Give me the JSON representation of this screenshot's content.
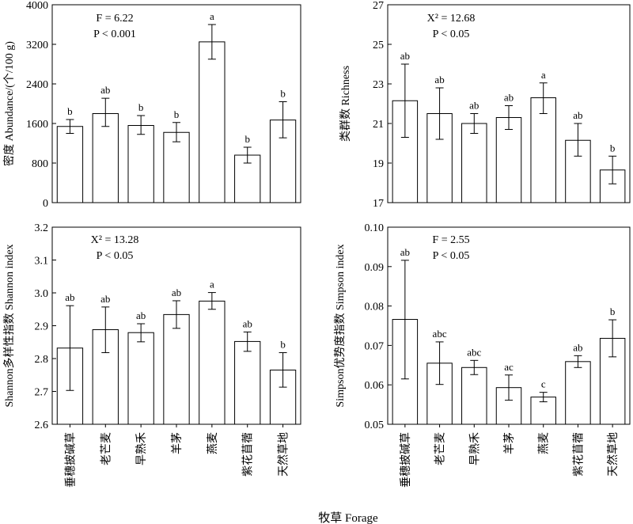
{
  "x_axis_title": "牧草  Forage",
  "chart_data": [
    {
      "type": "bar",
      "ylabel": "密度 Abundance/(个/100 g)",
      "ylim": [
        0,
        4000
      ],
      "yticks": [
        "0",
        "800",
        "1600",
        "2400",
        "3200",
        "4000"
      ],
      "yticks_values": [
        0,
        800,
        1600,
        2400,
        3200,
        4000
      ],
      "stat_lines": [
        "F = 6.22",
        "P < 0.001"
      ],
      "categories": [
        "垂穗披碱草",
        "老芒麦",
        "早熟禾",
        "羊茅",
        "燕麦",
        "紫花苜蓿",
        "天然草地"
      ],
      "values": [
        1540,
        1800,
        1560,
        1420,
        3250,
        960,
        1670
      ],
      "err_low": [
        1400,
        1540,
        1380,
        1230,
        2900,
        800,
        1310
      ],
      "err_high": [
        1680,
        2110,
        1760,
        1620,
        3600,
        1120,
        2040
      ],
      "sig": [
        "b",
        "ab",
        "b",
        "b",
        "a",
        "b",
        "b"
      ],
      "show_category_labels": false
    },
    {
      "type": "bar",
      "ylabel": "类群数 Richness",
      "ylim": [
        17,
        27
      ],
      "yticks": [
        "17",
        "19",
        "21",
        "23",
        "25",
        "27"
      ],
      "yticks_values": [
        17,
        19,
        21,
        23,
        25,
        27
      ],
      "stat_lines": [
        "X² = 12.68",
        "P < 0.05"
      ],
      "categories": [
        "垂穗披碱草",
        "老芒麦",
        "早熟禾",
        "羊茅",
        "燕麦",
        "紫花苜蓿",
        "天然草地"
      ],
      "values": [
        22.15,
        21.5,
        21.0,
        21.3,
        22.3,
        20.15,
        18.65
      ],
      "err_low": [
        20.3,
        20.2,
        20.5,
        20.7,
        21.5,
        19.35,
        17.95
      ],
      "err_high": [
        24.0,
        22.8,
        21.5,
        21.9,
        23.05,
        21.0,
        19.35
      ],
      "sig": [
        "ab",
        "ab",
        "ab",
        "ab",
        "a",
        "ab",
        "b"
      ],
      "show_category_labels": false
    },
    {
      "type": "bar",
      "ylabel": "Shannon多样性指数 Shannon index",
      "ylim": [
        2.6,
        3.2
      ],
      "yticks": [
        "2.6",
        "2.7",
        "2.8",
        "2.9",
        "3.0",
        "3.1",
        "3.2"
      ],
      "yticks_values": [
        2.6,
        2.7,
        2.8,
        2.9,
        3.0,
        3.1,
        3.2
      ],
      "stat_lines": [
        "X² = 13.28",
        "P < 0.05"
      ],
      "categories": [
        "垂穗披碱草",
        "老芒麦",
        "早熟禾",
        "羊茅",
        "燕麦",
        "紫花苜蓿",
        "天然草地"
      ],
      "values": [
        2.832,
        2.888,
        2.879,
        2.934,
        2.975,
        2.852,
        2.765
      ],
      "err_low": [
        2.703,
        2.818,
        2.851,
        2.892,
        2.95,
        2.822,
        2.713
      ],
      "err_high": [
        2.961,
        2.957,
        2.906,
        2.976,
        3.001,
        2.881,
        2.818
      ],
      "sig": [
        "ab",
        "ab",
        "ab",
        "ab",
        "a",
        "ab",
        "b"
      ],
      "show_category_labels": true
    },
    {
      "type": "bar",
      "ylabel": "Simpson优势度指数 Simpson index",
      "ylim": [
        0.05,
        0.1
      ],
      "yticks": [
        "0.05",
        "0.06",
        "0.07",
        "0.08",
        "0.09",
        "0.10"
      ],
      "yticks_values": [
        0.05,
        0.06,
        0.07,
        0.08,
        0.09,
        0.1
      ],
      "stat_lines": [
        "F = 2.55",
        "P < 0.05"
      ],
      "categories": [
        "垂穗披碱草",
        "老芒麦",
        "早熟禾",
        "羊茅",
        "燕麦",
        "紫花苜蓿",
        "天然草地"
      ],
      "values": [
        0.0766,
        0.0655,
        0.0644,
        0.0593,
        0.0569,
        0.0659,
        0.0718
      ],
      "err_low": [
        0.0615,
        0.0601,
        0.0626,
        0.0561,
        0.0557,
        0.0644,
        0.0671
      ],
      "err_high": [
        0.0916,
        0.0709,
        0.0662,
        0.0625,
        0.0581,
        0.0674,
        0.0765
      ],
      "sig": [
        "ab",
        "abc",
        "abc",
        "ac",
        "c",
        "ab",
        "b"
      ],
      "show_category_labels": true
    }
  ]
}
